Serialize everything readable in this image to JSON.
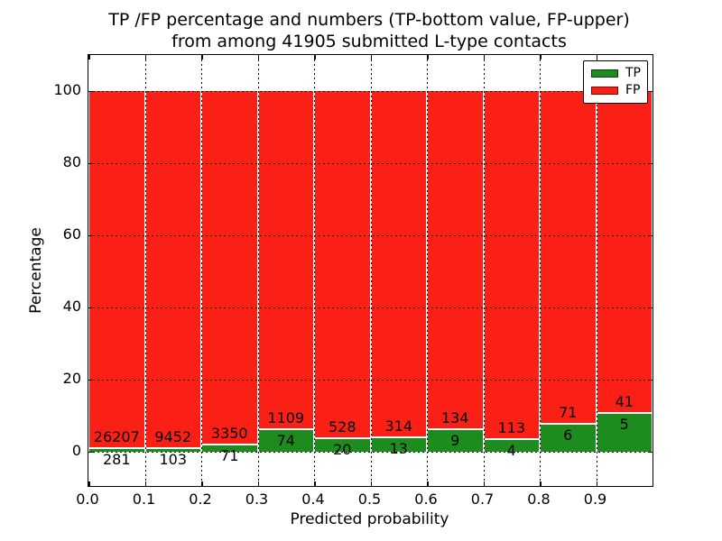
{
  "title": {
    "line1": "TP /FP percentage and numbers (TP-bottom value, FP-upper)",
    "line2": "from among 41905 submitted L-type contacts"
  },
  "axes": {
    "xlabel": "Predicted probability",
    "ylabel": "Percentage",
    "xticks": [
      "0.0",
      "0.1",
      "0.2",
      "0.3",
      "0.4",
      "0.5",
      "0.6",
      "0.7",
      "0.8",
      "0.9"
    ],
    "yticks": [
      0,
      20,
      40,
      60,
      80,
      100
    ]
  },
  "legend": {
    "items": [
      {
        "label": "TP",
        "color": "#1e8b1e"
      },
      {
        "label": "FP",
        "color": "#fb2015"
      }
    ]
  },
  "colors": {
    "tp": "#1e8b1e",
    "fp": "#fb2015",
    "grid": "#000000",
    "background": "#ffffff"
  },
  "chart_data": {
    "type": "bar",
    "stacked": true,
    "normalized_to_percent": true,
    "title": "TP /FP percentage and numbers (TP-bottom value, FP-upper) from among 41905 submitted L-type contacts",
    "xlabel": "Predicted probability",
    "ylabel": "Percentage",
    "total_contacts": 41905,
    "bins": [
      "0.0-0.1",
      "0.1-0.2",
      "0.2-0.3",
      "0.3-0.4",
      "0.4-0.5",
      "0.5-0.6",
      "0.6-0.7",
      "0.7-0.8",
      "0.8-0.9",
      "0.9-1.0"
    ],
    "bin_starts": [
      0.0,
      0.1,
      0.2,
      0.3,
      0.4,
      0.5,
      0.6,
      0.7,
      0.8,
      0.9
    ],
    "series": [
      {
        "name": "TP",
        "counts": [
          281,
          103,
          71,
          74,
          20,
          13,
          9,
          4,
          6,
          5
        ]
      },
      {
        "name": "FP",
        "counts": [
          26207,
          9452,
          3350,
          1109,
          528,
          314,
          134,
          113,
          71,
          41
        ]
      }
    ],
    "tp_percent_of_bin": [
      1.06,
      1.08,
      2.08,
      6.26,
      3.65,
      3.98,
      6.29,
      3.42,
      7.79,
      10.87
    ],
    "xlim": [
      0.0,
      1.0
    ],
    "ylim": [
      -9.5,
      110
    ],
    "grid": "dotted",
    "legend_position": "upper right"
  }
}
